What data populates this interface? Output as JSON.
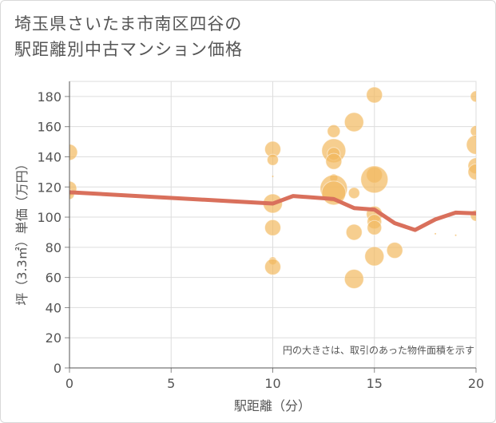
{
  "title_line1": "埼玉県さいたま市南区四谷の",
  "title_line2": "駅距離別中古マンション価格",
  "chart_data": {
    "type": "scatter",
    "title": "埼玉県さいたま市南区四谷の駅距離別中古マンション価格",
    "xlabel": "駅距離（分）",
    "ylabel": "坪（3.3㎡）単価（万円）",
    "xlim": [
      0,
      20
    ],
    "ylim": [
      0,
      190
    ],
    "xticks": [
      0,
      5,
      10,
      15,
      20
    ],
    "yticks": [
      0,
      20,
      40,
      60,
      80,
      100,
      120,
      140,
      160,
      180
    ],
    "grid": true,
    "note": "円の大きさは、取引のあった物件面積を示す",
    "bubble_color": "#f2b95f",
    "line_color": "#d9705c",
    "bubbles": [
      {
        "x": 0,
        "y": 143,
        "r": 10
      },
      {
        "x": 0,
        "y": 119,
        "r": 9
      },
      {
        "x": 0,
        "y": 115,
        "r": 6
      },
      {
        "x": 0,
        "y": 92,
        "r": 1
      },
      {
        "x": 10,
        "y": 145,
        "r": 10
      },
      {
        "x": 10,
        "y": 138,
        "r": 7
      },
      {
        "x": 10,
        "y": 127,
        "r": 1
      },
      {
        "x": 10,
        "y": 109,
        "r": 12
      },
      {
        "x": 10,
        "y": 93,
        "r": 10
      },
      {
        "x": 10,
        "y": 71,
        "r": 5
      },
      {
        "x": 10,
        "y": 67,
        "r": 10
      },
      {
        "x": 13,
        "y": 157,
        "r": 8
      },
      {
        "x": 13,
        "y": 144,
        "r": 15
      },
      {
        "x": 13,
        "y": 142,
        "r": 8
      },
      {
        "x": 13,
        "y": 137,
        "r": 10
      },
      {
        "x": 13,
        "y": 126,
        "r": 5
      },
      {
        "x": 13,
        "y": 119,
        "r": 17
      },
      {
        "x": 13,
        "y": 116,
        "r": 15
      },
      {
        "x": 14,
        "y": 163,
        "r": 12
      },
      {
        "x": 14,
        "y": 116,
        "r": 7
      },
      {
        "x": 14,
        "y": 90,
        "r": 10
      },
      {
        "x": 14,
        "y": 59,
        "r": 12
      },
      {
        "x": 15,
        "y": 181,
        "r": 10
      },
      {
        "x": 15,
        "y": 128,
        "r": 10
      },
      {
        "x": 15,
        "y": 125,
        "r": 17
      },
      {
        "x": 15,
        "y": 102,
        "r": 10
      },
      {
        "x": 15,
        "y": 97,
        "r": 9
      },
      {
        "x": 15,
        "y": 93,
        "r": 9
      },
      {
        "x": 15,
        "y": 74,
        "r": 12
      },
      {
        "x": 16,
        "y": 78,
        "r": 10
      },
      {
        "x": 18,
        "y": 89,
        "r": 1
      },
      {
        "x": 19,
        "y": 88,
        "r": 1
      },
      {
        "x": 20,
        "y": 180,
        "r": 7
      },
      {
        "x": 20,
        "y": 157,
        "r": 7
      },
      {
        "x": 20,
        "y": 148,
        "r": 12
      },
      {
        "x": 20,
        "y": 134,
        "r": 10
      },
      {
        "x": 20,
        "y": 130,
        "r": 10
      },
      {
        "x": 20,
        "y": 101,
        "r": 7
      }
    ],
    "series": [
      {
        "name": "平均",
        "x": [
          0,
          10,
          11,
          13,
          14,
          15,
          16,
          17,
          18,
          19,
          20
        ],
        "values": [
          116.5,
          109,
          114,
          112,
          106,
          105,
          96,
          91.5,
          98.5,
          103,
          102.5
        ]
      }
    ]
  }
}
